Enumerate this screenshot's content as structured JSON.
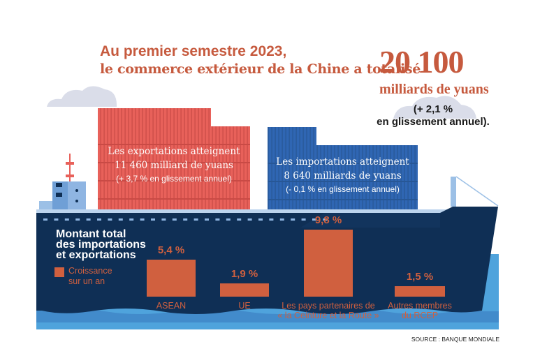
{
  "header": {
    "line1": "Au premier semestre 2023,",
    "line2": "le commerce extérieur de la Chine a totalisé"
  },
  "total": {
    "value": "20 100",
    "unit": "milliards de yuans",
    "growth_line1": "(+ 2,1 %",
    "growth_line2": "en glissement annuel)."
  },
  "exports": {
    "line1": "Les exportations atteignent",
    "line2": "11 460 milliard de yuans",
    "line3": "(+ 3,7 % en glissement annuel)"
  },
  "imports": {
    "line1": "Les importations atteignent",
    "line2": "8 640 milliards de yuans",
    "line3": "(- 0,1 % en glissement annuel)"
  },
  "legend": {
    "title_line1": "Montant total",
    "title_line2": "des importations",
    "title_line3": "et exportations",
    "item_line1": "Croissance",
    "item_line2": "sur un an"
  },
  "colors": {
    "accent": "#c65a3e",
    "bar": "#d0603f",
    "hull": "#0f2f55",
    "export_container": "#e8615a",
    "import_container": "#2f66b3",
    "water": "#4fa3dc"
  },
  "chart_data": {
    "type": "bar",
    "title": "Montant total des importations et exportations",
    "legend": [
      "Croissance sur un an"
    ],
    "categories": [
      "ASEAN",
      "UE",
      "Les pays partenaires de « la Ceinture et la Route »",
      "Autres membres du RCEP"
    ],
    "category_lines": [
      [
        "ASEAN"
      ],
      [
        "UE"
      ],
      [
        "Les pays partenaires de",
        "« la Ceinture et la Route »"
      ],
      [
        "Autres membres",
        "du RCEP"
      ]
    ],
    "values": [
      5.4,
      1.9,
      9.8,
      1.5
    ],
    "labels": [
      "5,4 %",
      "1,9 %",
      "9,8 %",
      "1,5 %"
    ],
    "unit": "%",
    "ylim": [
      0,
      10
    ]
  },
  "source": "SOURCE : BANQUE MONDIALE"
}
